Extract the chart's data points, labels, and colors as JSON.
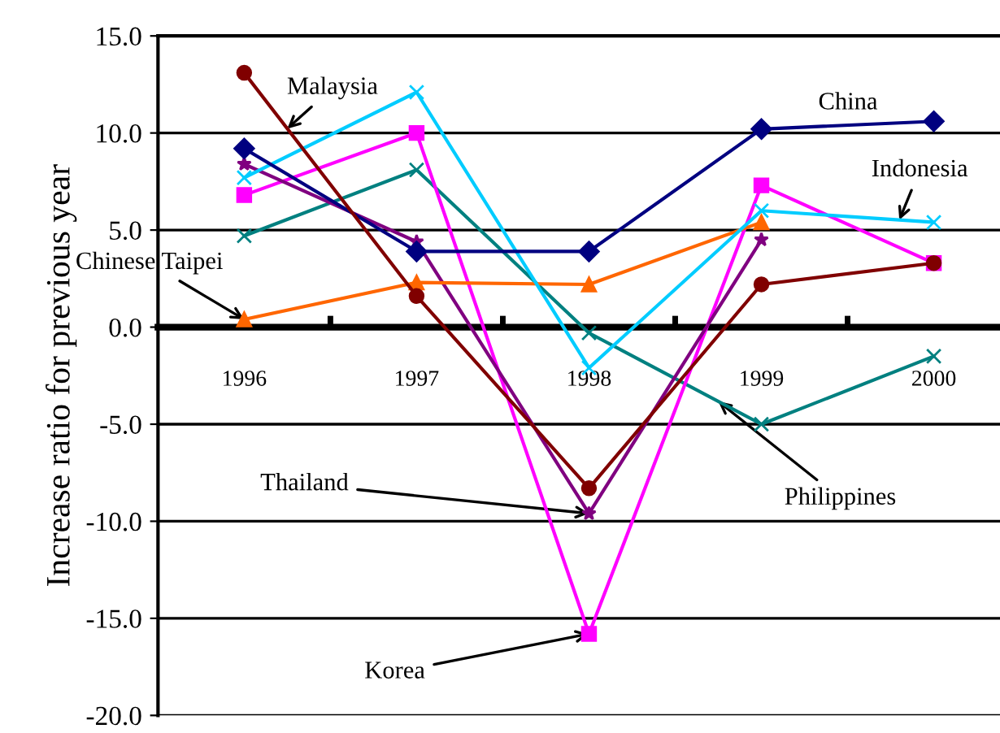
{
  "chart_data": {
    "type": "line",
    "ylabel": "Increase ratio for previous year",
    "categories": [
      "1996",
      "1997",
      "1998",
      "1999",
      "2000"
    ],
    "ylim": [
      -20,
      15
    ],
    "yticks": [
      {
        "value": -20,
        "label": "-20.0"
      },
      {
        "value": -15,
        "label": "-15.0"
      },
      {
        "value": -10,
        "label": "-10.0"
      },
      {
        "value": -5,
        "label": "-5.0"
      },
      {
        "value": 0,
        "label": "0.0"
      },
      {
        "value": 5,
        "label": "5.0"
      },
      {
        "value": 10,
        "label": "10.0"
      },
      {
        "value": 15,
        "label": "15.0"
      }
    ],
    "grid": "y",
    "legend": false,
    "series": [
      {
        "name": "Malaysia",
        "color": "#800000",
        "marker": "circle",
        "values": [
          13.1,
          1.6,
          -8.3,
          2.2,
          3.3
        ]
      },
      {
        "name": "China",
        "color": "#000080",
        "marker": "diamond",
        "values": [
          9.2,
          3.9,
          3.9,
          10.2,
          10.6
        ]
      },
      {
        "name": "Indonesia",
        "color": "#00ccff",
        "marker": "cross",
        "values": [
          7.7,
          12.1,
          -2.1,
          6.0,
          5.4
        ]
      },
      {
        "name": "Chinese Taipei",
        "color": "#ff6600",
        "marker": "triangle",
        "values": [
          0.4,
          2.3,
          2.2,
          5.4,
          null
        ]
      },
      {
        "name": "Thailand",
        "color": "#800080",
        "marker": "star",
        "values": [
          8.4,
          4.4,
          -9.6,
          4.5,
          null
        ]
      },
      {
        "name": "Korea",
        "color": "#ff00ff",
        "marker": "square",
        "values": [
          6.8,
          10.0,
          -15.8,
          7.3,
          3.3
        ]
      },
      {
        "name": "Philippines",
        "color": "#008080",
        "marker": "cross",
        "values": [
          4.7,
          8.1,
          -0.3,
          -5.0,
          -1.5
        ]
      }
    ]
  }
}
